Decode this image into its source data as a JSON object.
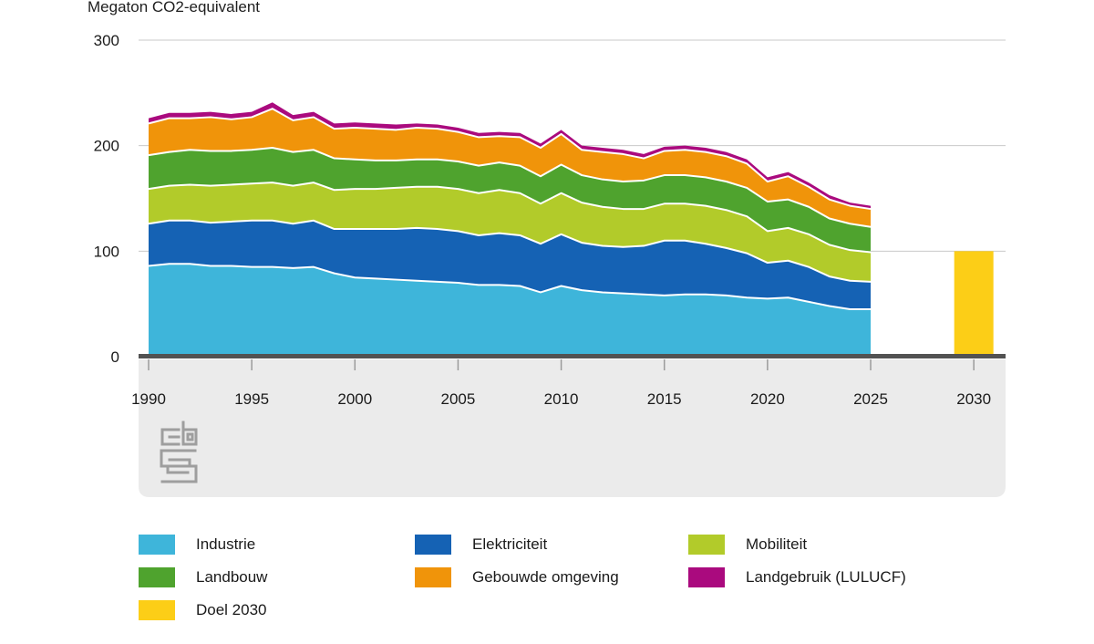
{
  "title": "Megaton CO2-equivalent",
  "chart_data": {
    "type": "area",
    "stacked": true,
    "title": "Megaton CO2-equivalent",
    "ylabel": "Megaton CO2-equivalent",
    "xlabel": "",
    "ylim": [
      0,
      300
    ],
    "grid": true,
    "legend_position": "bottom",
    "y_ticks": [
      0,
      100,
      200,
      300
    ],
    "x_ticks": [
      1990,
      1995,
      2000,
      2005,
      2010,
      2015,
      2020,
      2025,
      2030
    ],
    "x": [
      1990,
      1991,
      1992,
      1993,
      1994,
      1995,
      1996,
      1997,
      1998,
      1999,
      2000,
      2001,
      2002,
      2003,
      2004,
      2005,
      2006,
      2007,
      2008,
      2009,
      2010,
      2011,
      2012,
      2013,
      2014,
      2015,
      2016,
      2017,
      2018,
      2019,
      2020,
      2021,
      2022,
      2023,
      2024,
      2025
    ],
    "series": [
      {
        "name": "Industrie",
        "color": "#3eb5da",
        "values": [
          86,
          88,
          88,
          86,
          86,
          85,
          85,
          84,
          85,
          79,
          75,
          74,
          73,
          72,
          71,
          70,
          68,
          68,
          67,
          61,
          67,
          63,
          61,
          60,
          59,
          58,
          59,
          59,
          58,
          56,
          55,
          56,
          52,
          48,
          45,
          45
        ]
      },
      {
        "name": "Elektriciteit",
        "color": "#1562b4",
        "values": [
          40,
          41,
          41,
          41,
          42,
          44,
          44,
          42,
          44,
          42,
          46,
          47,
          48,
          50,
          50,
          49,
          47,
          49,
          48,
          46,
          49,
          45,
          44,
          44,
          46,
          52,
          51,
          48,
          45,
          42,
          34,
          35,
          33,
          28,
          27,
          26
        ]
      },
      {
        "name": "Mobiliteit",
        "color": "#b2cb2a",
        "values": [
          33,
          33,
          34,
          35,
          35,
          35,
          36,
          36,
          36,
          37,
          38,
          38,
          39,
          39,
          40,
          40,
          40,
          41,
          40,
          38,
          39,
          38,
          37,
          36,
          35,
          35,
          35,
          36,
          36,
          35,
          30,
          31,
          31,
          30,
          29,
          28
        ]
      },
      {
        "name": "Landbouw",
        "color": "#4fa32e",
        "values": [
          32,
          32,
          33,
          33,
          32,
          32,
          33,
          32,
          31,
          30,
          28,
          27,
          26,
          26,
          26,
          26,
          26,
          26,
          26,
          26,
          27,
          26,
          26,
          26,
          27,
          27,
          27,
          27,
          27,
          27,
          28,
          27,
          26,
          25,
          25,
          24
        ]
      },
      {
        "name": "Gebouwde omgeving",
        "color": "#f0940a",
        "values": [
          30,
          32,
          30,
          32,
          30,
          31,
          37,
          30,
          31,
          28,
          30,
          30,
          29,
          30,
          29,
          28,
          27,
          25,
          27,
          27,
          29,
          24,
          26,
          26,
          21,
          23,
          24,
          24,
          24,
          23,
          19,
          22,
          19,
          18,
          17,
          17
        ]
      },
      {
        "name": "Landgebruik (LULUCF)",
        "color": "#aa0a7e",
        "values": [
          5,
          5,
          5,
          5,
          5,
          5,
          6,
          5,
          5,
          5,
          5,
          5,
          5,
          4,
          4,
          4,
          4,
          4,
          4,
          4,
          4,
          4,
          4,
          4,
          4,
          4,
          4,
          4,
          4,
          4,
          4,
          4,
          4,
          4,
          3,
          3
        ]
      }
    ],
    "bar": {
      "name": "Doel 2030",
      "color": "#fcce17",
      "x": 2030,
      "value": 100
    }
  },
  "legend": {
    "items": [
      {
        "label": "Industrie",
        "color": "#3eb5da"
      },
      {
        "label": "Elektriciteit",
        "color": "#1562b4"
      },
      {
        "label": "Mobiliteit",
        "color": "#b2cb2a"
      },
      {
        "label": "Landbouw",
        "color": "#4fa32e"
      },
      {
        "label": "Gebouwde omgeving",
        "color": "#f0940a"
      },
      {
        "label": "Landgebruik (LULUCF)",
        "color": "#aa0a7e"
      },
      {
        "label": "Doel 2030",
        "color": "#fcce17"
      }
    ]
  },
  "branding": {
    "logo": "cbs-logo"
  }
}
